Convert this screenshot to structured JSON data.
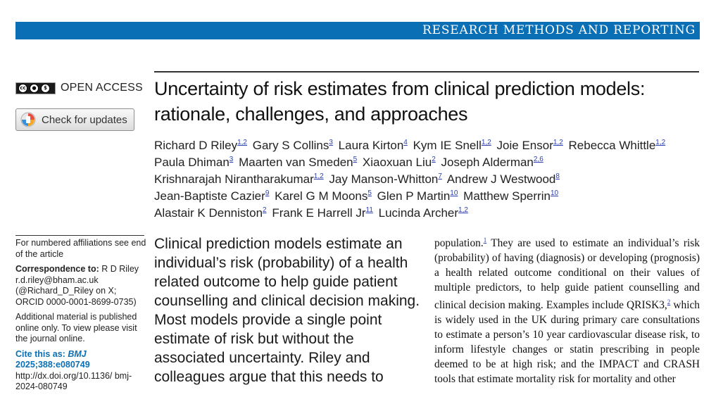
{
  "section_banner": "RESEARCH METHODS AND REPORTING",
  "license": {
    "cc_icons": [
      "cc",
      "by",
      "nc"
    ],
    "open_access_label": "OPEN ACCESS"
  },
  "check_updates": {
    "label": "Check for updates"
  },
  "title_line1": "Uncertainty of risk estimates from clinical prediction models:",
  "title_line2": "rationale, challenges, and approaches",
  "authors": [
    {
      "name": "Richard D Riley",
      "aff": "1,2"
    },
    {
      "name": "Gary S Collins",
      "aff": "3"
    },
    {
      "name": "Laura Kirton",
      "aff": "4"
    },
    {
      "name": "Kym IE Snell",
      "aff": "1,2"
    },
    {
      "name": "Joie Ensor",
      "aff": "1,2"
    },
    {
      "name": "Rebecca Whittle",
      "aff": "1,2"
    },
    {
      "name": "Paula Dhiman",
      "aff": "3"
    },
    {
      "name": "Maarten van Smeden",
      "aff": "5"
    },
    {
      "name": "Xiaoxuan Liu",
      "aff": "2"
    },
    {
      "name": "Joseph Alderman",
      "aff": "2,6"
    },
    {
      "name": "Krishnarajah Nirantharakumar",
      "aff": "1,2"
    },
    {
      "name": "Jay Manson-Whitton",
      "aff": "7"
    },
    {
      "name": "Andrew J Westwood",
      "aff": "8"
    },
    {
      "name": "Jean-Baptiste Cazier",
      "aff": "9"
    },
    {
      "name": "Karel G M Moons",
      "aff": "5"
    },
    {
      "name": "Glen P Martin",
      "aff": "10"
    },
    {
      "name": "Matthew Sperrin",
      "aff": "10"
    },
    {
      "name": "Alastair K Denniston",
      "aff": "2"
    },
    {
      "name": "Frank E Harrell Jr",
      "aff": "11"
    },
    {
      "name": "Lucinda Archer",
      "aff": "1,2"
    }
  ],
  "sidebar": {
    "affiliations_note": "For numbered affiliations see end of the article",
    "correspondence_label": "Correspondence to:",
    "correspondence_text": " R D Riley r.d.riley@bham.ac.uk (@Richard_D_Riley on X; ORCID 0000-0001-8699-0735)",
    "additional_material": "Additional material is published online only. To view please visit the journal online.",
    "cite_label": "Cite this as: ",
    "cite_journal": "BMJ",
    "cite_ref": " 2025;388:e080749",
    "doi": "http://dx.doi.org/10.1136/ bmj-2024-080749"
  },
  "abstract": "Clinical prediction models estimate an individual’s risk (probability) of a health related outcome to help guide patient counselling and clinical decision making. Most models provide a single point estimate of risk but without the associated uncertainty. Riley and colleagues argue that this needs to",
  "body": {
    "p1": "population.",
    "ref1": "1",
    "p2": " They are used to estimate an individual’s risk (probability) of having (diagnosis) or developing (prognosis) a health related outcome conditional on their values of multiple predictors, to help guide patient counselling and clinical decision making. Examples include QRISK3,",
    "ref2": "2",
    "p3": " which is widely used in the UK during primary care consultations to estimate a person’s 10 year cardiovascular disease risk, to inform lifestyle changes or statin prescribing in people deemed to be at high risk; and the IMPACT and CRASH tools that estimate mortality risk for mortality and other"
  },
  "colors": {
    "banner_blue": "#0a6fb5",
    "link_blue": "#2a3fb0"
  }
}
